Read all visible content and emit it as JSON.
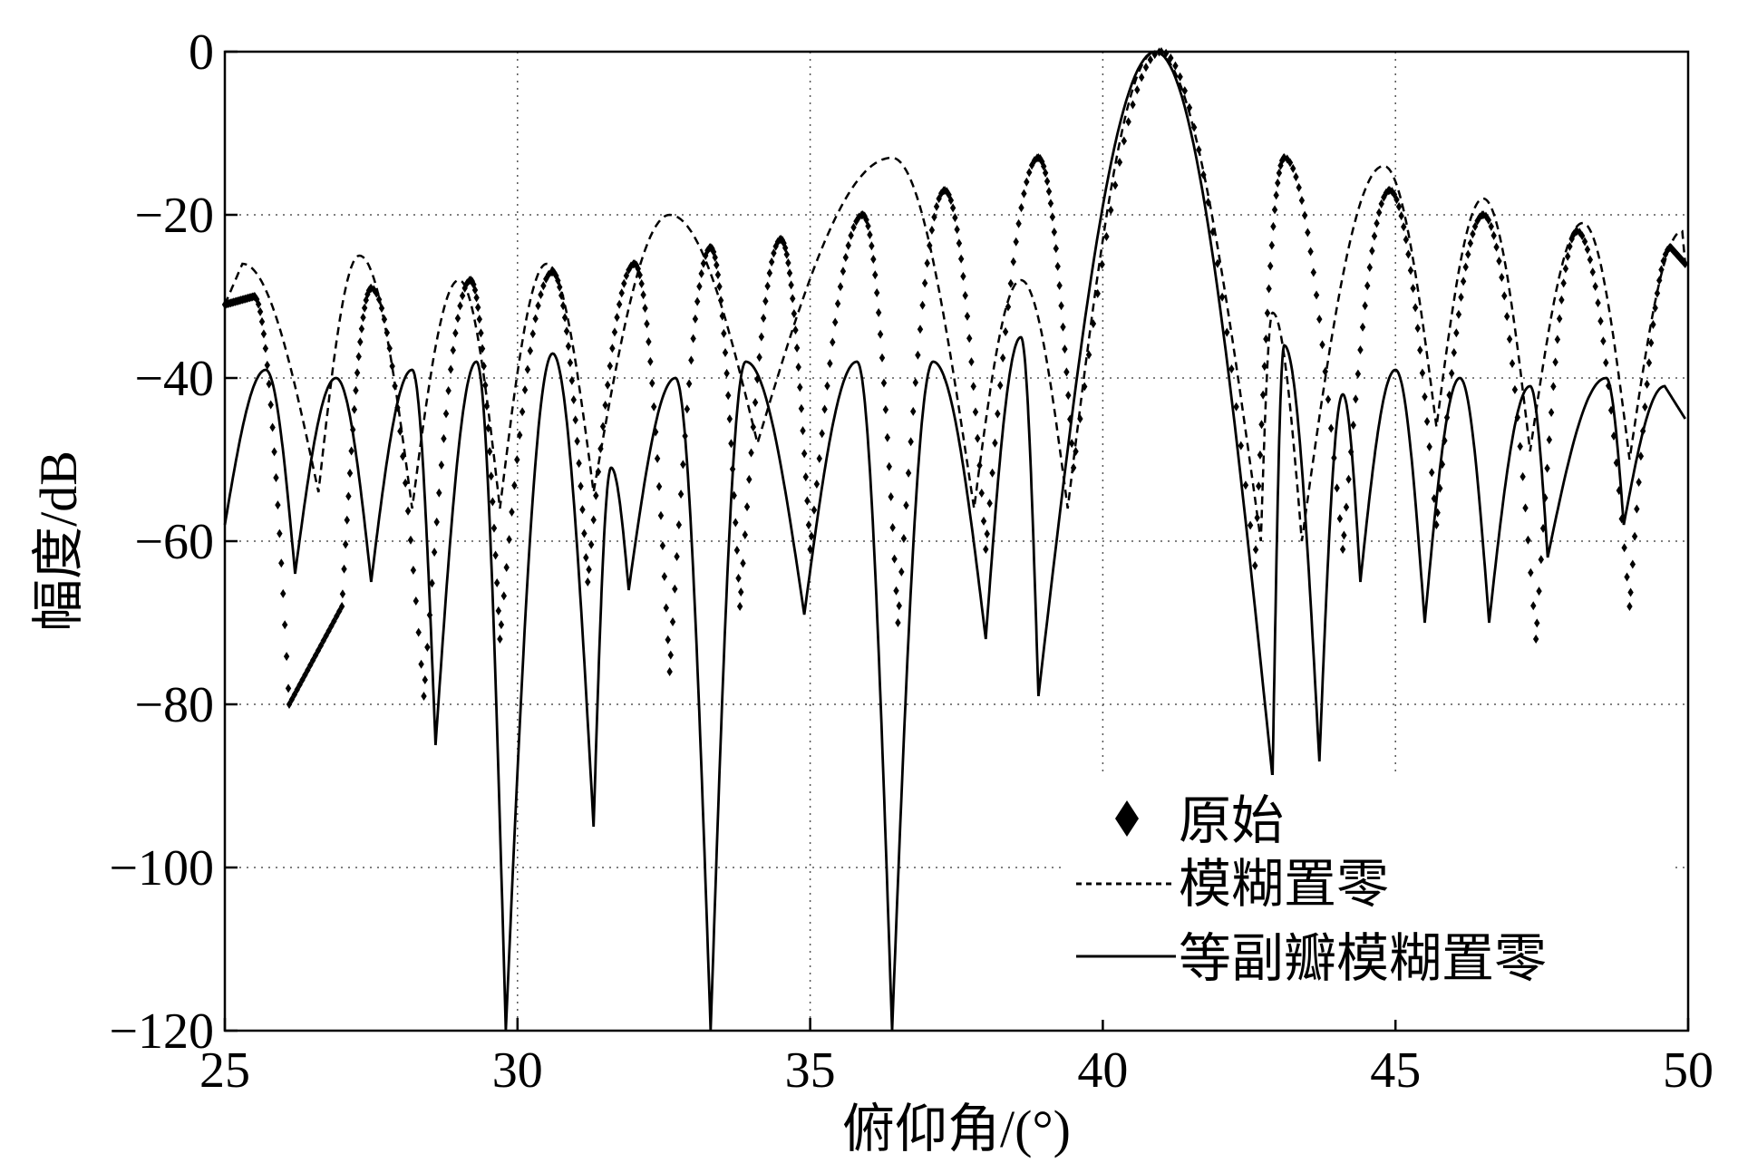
{
  "chart_data": {
    "type": "line",
    "xlabel": "俯仰角/(°)",
    "ylabel": "幅度/dB",
    "xlim": [
      25,
      50
    ],
    "ylim": [
      -120,
      0
    ],
    "xticks": [
      25,
      30,
      35,
      40,
      45,
      50
    ],
    "yticks": [
      0,
      -20,
      -40,
      -60,
      -80,
      -100,
      -120
    ],
    "xtick_labels": [
      "25",
      "30",
      "35",
      "40",
      "45",
      "50"
    ],
    "ytick_labels": [
      "0",
      "−20",
      "−40",
      "−60",
      "−80",
      "−100",
      "−120"
    ],
    "grid": true,
    "legend": "bottom-right",
    "series": [
      {
        "name": "原始",
        "style": "diamond-markers",
        "color": "#000000",
        "peaks_x": [
          25.5,
          27.5,
          29.2,
          30.6,
          32.0,
          33.3,
          34.5,
          35.9,
          37.3,
          38.9,
          41.0,
          43.1,
          44.9,
          46.5,
          48.1,
          49.7
        ],
        "peaks_y": [
          -30,
          -29,
          -28,
          -27,
          -26,
          -24,
          -23,
          -20,
          -17,
          -13,
          0,
          -13,
          -17,
          -20,
          -22,
          -24
        ],
        "nulls_x": [
          26.1,
          27.0,
          28.4,
          29.7,
          31.2,
          32.6,
          33.8,
          35.0,
          36.5,
          38.0,
          39.5,
          42.6,
          44.1,
          45.7,
          47.4,
          49.0
        ]
      },
      {
        "name": "模糊置零",
        "style": "dashed",
        "color": "#000000",
        "peaks_x": [
          25.3,
          27.3,
          29.0,
          30.5,
          32.6,
          36.4,
          38.6,
          40.9,
          42.9,
          44.8,
          46.5,
          48.2,
          49.9
        ],
        "peaks_y": [
          -26,
          -25,
          -28,
          -26,
          -20,
          -13,
          -28,
          0,
          -32,
          -14,
          -18,
          -21,
          -22
        ],
        "nulls_x": [
          26.6,
          28.2,
          29.7,
          31.3,
          34.1,
          37.8,
          39.4,
          42.7,
          43.4,
          45.7,
          47.3,
          49.0
        ]
      },
      {
        "name": "等副瓣模糊置零",
        "style": "solid",
        "color": "#000000",
        "peaks_x": [
          25.7,
          26.9,
          28.2,
          29.3,
          30.6,
          31.6,
          32.7,
          33.9,
          35.8,
          37.1,
          38.6,
          40.9,
          43.1,
          44.1,
          45.0,
          46.1,
          47.3,
          48.6,
          49.6
        ],
        "peaks_y": [
          -39,
          -40,
          -39,
          -38,
          -37,
          -51,
          -40,
          -38,
          -38,
          -38,
          -35,
          0,
          -36,
          -42,
          -39,
          -40,
          -41,
          -40,
          -41
        ],
        "nulls_x": [
          26.2,
          27.5,
          28.6,
          29.8,
          31.3,
          31.9,
          33.3,
          34.9,
          36.4,
          38.0,
          38.9,
          42.9,
          43.7,
          44.4,
          45.5,
          46.6,
          47.6,
          48.9
        ]
      }
    ]
  }
}
